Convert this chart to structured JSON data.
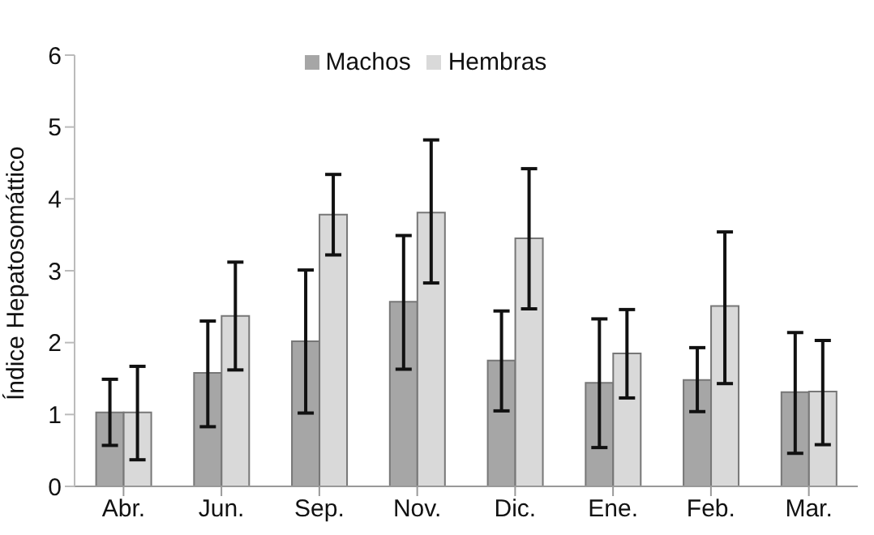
{
  "chart_data": {
    "type": "bar",
    "ylabel": "Índice Hepatosomáttico",
    "categories": [
      "Abr.",
      "Jun.",
      "Sep.",
      "Nov.",
      "Dic.",
      "Ene.",
      "Feb.",
      "Mar."
    ],
    "series": [
      {
        "name": "Machos",
        "color": "#a6a6a6",
        "values": [
          1.03,
          1.58,
          2.02,
          2.57,
          1.75,
          1.44,
          1.48,
          1.31
        ],
        "errors": [
          [
            0.57,
            1.49
          ],
          [
            0.83,
            2.3
          ],
          [
            1.02,
            3.01
          ],
          [
            1.63,
            3.49
          ],
          [
            1.05,
            2.44
          ],
          [
            0.54,
            2.33
          ],
          [
            1.04,
            1.93
          ],
          [
            0.46,
            2.14
          ]
        ]
      },
      {
        "name": "Hembras",
        "color": "#d9d9d9",
        "values": [
          1.03,
          2.37,
          3.78,
          3.81,
          3.45,
          1.85,
          2.51,
          1.32
        ],
        "errors": [
          [
            0.37,
            1.67
          ],
          [
            1.62,
            3.12
          ],
          [
            3.22,
            4.34
          ],
          [
            2.83,
            4.82
          ],
          [
            2.47,
            4.42
          ],
          [
            1.23,
            2.46
          ],
          [
            1.43,
            3.54
          ],
          [
            0.58,
            2.03
          ]
        ]
      }
    ],
    "ylim": [
      0,
      6
    ],
    "yticks": [
      0,
      1,
      2,
      3,
      4,
      5,
      6
    ],
    "grid": false,
    "legend": "top"
  }
}
